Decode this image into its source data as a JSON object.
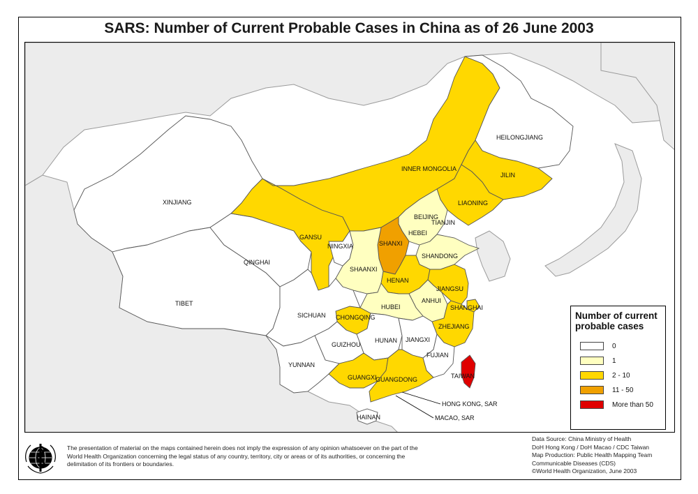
{
  "title": "SARS: Number of Current Probable Cases in China as of 26 June 2003",
  "colors": {
    "sea": "#ffffff",
    "other_land": "#ececec",
    "other_border": "#9a9a9a",
    "cat0": "#ffffff",
    "cat1": "#ffffc0",
    "cat2_10": "#ffd800",
    "cat11_50": "#f0a000",
    "cat_more50": "#e00000"
  },
  "legend": {
    "title_line1": "Number of current",
    "title_line2": "probable cases",
    "items": [
      {
        "label": "0",
        "category": "cat0"
      },
      {
        "label": "1",
        "category": "cat1"
      },
      {
        "label": "2 - 10",
        "category": "cat2_10"
      },
      {
        "label": "11 - 50",
        "category": "cat11_50"
      },
      {
        "label": "More than 50",
        "category": "cat_more50"
      }
    ]
  },
  "provinces": [
    {
      "name": "XINJIANG",
      "category": "cat0"
    },
    {
      "name": "TIBET",
      "category": "cat0"
    },
    {
      "name": "QINGHAI",
      "category": "cat0"
    },
    {
      "name": "GANSU",
      "category": "cat2_10"
    },
    {
      "name": "INNER MONGOLIA",
      "category": "cat2_10"
    },
    {
      "name": "HEILONGJIANG",
      "category": "cat0"
    },
    {
      "name": "JILIN",
      "category": "cat2_10"
    },
    {
      "name": "LIAONING",
      "category": "cat2_10"
    },
    {
      "name": "BEIJING",
      "category": "cat2_10"
    },
    {
      "name": "TIANJIN",
      "category": "cat11_50"
    },
    {
      "name": "HEBEI",
      "category": "cat1"
    },
    {
      "name": "SHANXI",
      "category": "cat11_50"
    },
    {
      "name": "NINGXIA",
      "category": "cat0"
    },
    {
      "name": "SHAANXI",
      "category": "cat1"
    },
    {
      "name": "SHANDONG",
      "category": "cat1"
    },
    {
      "name": "HENAN",
      "category": "cat2_10"
    },
    {
      "name": "JIANGSU",
      "category": "cat2_10"
    },
    {
      "name": "ANHUI",
      "category": "cat1"
    },
    {
      "name": "SHANGHAI",
      "category": "cat2_10"
    },
    {
      "name": "HUBEI",
      "category": "cat1"
    },
    {
      "name": "CHONGQING",
      "category": "cat2_10"
    },
    {
      "name": "SICHUAN",
      "category": "cat0"
    },
    {
      "name": "ZHEJIANG",
      "category": "cat2_10"
    },
    {
      "name": "HUNAN",
      "category": "cat0"
    },
    {
      "name": "JIANGXI",
      "category": "cat0"
    },
    {
      "name": "GUIZHOU",
      "category": "cat0"
    },
    {
      "name": "FUJIAN",
      "category": "cat0"
    },
    {
      "name": "YUNNAN",
      "category": "cat0"
    },
    {
      "name": "GUANGXI",
      "category": "cat2_10"
    },
    {
      "name": "GUANGDONG",
      "category": "cat2_10"
    },
    {
      "name": "TAIWAN",
      "category": "cat_more50"
    },
    {
      "name": "HAINAN",
      "category": "cat0"
    }
  ],
  "callouts": {
    "hong_kong": "HONG KONG, SAR",
    "macao": "MACAO, SAR"
  },
  "disclaimer": "The presentation of material on the maps contained herein does not imply the expression of any opinion whatsoever on the part of the World Health Organization concerning the legal status of any country, territory, city or areas or of its authorities, or concerning the delimitation of its frontiers or boundaries.",
  "credits": [
    "Data Source: China Ministry of Health",
    "DoH Hong Kong / DoH Macao / CDC Taiwan",
    "Map Production: Public Health Mapping Team",
    "Communicable Diseases (CDS)",
    "©World Health Organization, June 2003"
  ]
}
